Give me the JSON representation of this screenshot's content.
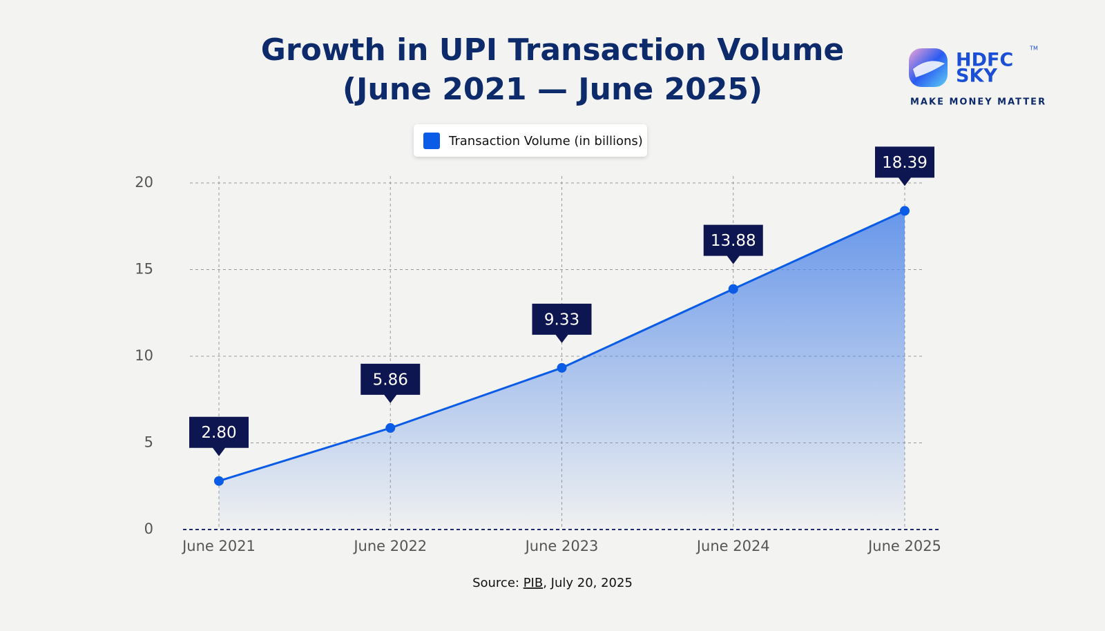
{
  "chart_data": {
    "type": "area",
    "title": [
      "Growth in UPI Transaction Volume",
      "(June 2021 — June 2025)"
    ],
    "categories": [
      "June 2021",
      "June 2022",
      "June 2023",
      "June 2024",
      "June 2025"
    ],
    "series": [
      {
        "name": "Transaction Volume (in billions)",
        "color": "#0a5ce6",
        "values": [
          2.8,
          5.86,
          9.33,
          13.88,
          18.39
        ],
        "value_labels": [
          "2.80",
          "5.86",
          "9.33",
          "13.88",
          "18.39"
        ]
      }
    ],
    "ylim": [
      0,
      20
    ],
    "yticks": [
      0,
      5,
      10,
      15,
      20
    ],
    "grid": true,
    "legend": "top",
    "source": {
      "prefix": "Source:",
      "link": "PIB",
      "suffix": ", July 20, 2025"
    }
  },
  "logo": {
    "line1": "HDFC",
    "line2": "SKY",
    "mark": "TM",
    "tagline": "MAKE MONEY MATTER"
  }
}
